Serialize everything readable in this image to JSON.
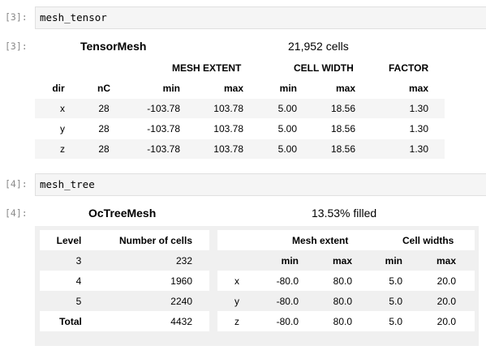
{
  "cell1": {
    "in_prompt": "[3]:",
    "code": "mesh_tensor",
    "out_prompt": "[3]:",
    "title": "TensorMesh",
    "summary": "21,952 cells",
    "group_headers": [
      "MESH EXTENT",
      "CELL WIDTH",
      "FACTOR"
    ],
    "col_headers": [
      "dir",
      "nC",
      "min",
      "max",
      "min",
      "max",
      "max"
    ],
    "rows": [
      [
        "x",
        "28",
        "-103.78",
        "103.78",
        "5.00",
        "18.56",
        "1.30"
      ],
      [
        "y",
        "28",
        "-103.78",
        "103.78",
        "5.00",
        "18.56",
        "1.30"
      ],
      [
        "z",
        "28",
        "-103.78",
        "103.78",
        "5.00",
        "18.56",
        "1.30"
      ]
    ]
  },
  "cell2": {
    "in_prompt": "[4]:",
    "code": "mesh_tree",
    "out_prompt": "[4]:",
    "title": "OcTreeMesh",
    "summary": "13.53% filled",
    "left_headers": [
      "Level",
      "Number of cells"
    ],
    "left_rows": [
      [
        "3",
        "232"
      ],
      [
        "4",
        "1960"
      ],
      [
        "5",
        "2240"
      ],
      [
        "Total",
        "4432"
      ]
    ],
    "right_group_headers": [
      "Mesh extent",
      "Cell widths"
    ],
    "right_col_headers": [
      "min",
      "max",
      "min",
      "max"
    ],
    "right_rows": [
      [
        "x",
        "-80.0",
        "80.0",
        "5.0",
        "20.0"
      ],
      [
        "y",
        "-80.0",
        "80.0",
        "5.0",
        "20.0"
      ],
      [
        "z",
        "-80.0",
        "80.0",
        "5.0",
        "20.0"
      ]
    ]
  }
}
